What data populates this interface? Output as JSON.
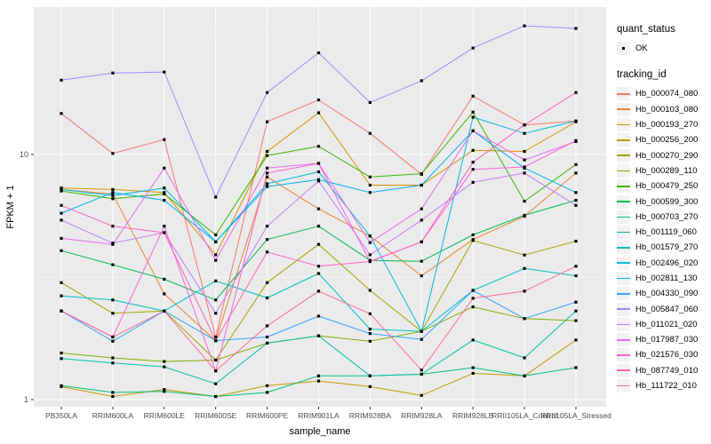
{
  "figure": {
    "legend": {
      "quant_status_title": "quant_status",
      "ok_label": "OK",
      "tracking_id_title": "tracking_id"
    }
  },
  "chart_data": {
    "type": "line",
    "title": "",
    "xlabel": "sample_name",
    "ylabel": "FPKM + 1",
    "y_scale": "log10",
    "ylim": [
      0.93,
      39
    ],
    "grid": "on",
    "legend_position": "right",
    "panel_bg": "#EBEBEB",
    "grid_color": "#FFFFFF",
    "point_color": "#000000",
    "tick_label_color": "#4D4D4D",
    "y_major_ticks": [
      {
        "value": 1,
        "label": "1"
      },
      {
        "value": 10,
        "label": "10"
      }
    ],
    "y_minor_gridlines": [
      3.162,
      31.62
    ],
    "quant_status": "OK",
    "categories": [
      "PB350LA",
      "RRIM600LA",
      "RRIM600LE",
      "RRIM600SE",
      "RRIM600PE",
      "RRIM901LA",
      "RRIM928BA",
      "RRIM928LA",
      "RRIM928LB",
      "RRII105LA_Control",
      "RRII105LA_Stressed"
    ],
    "series": [
      {
        "name": "Hb_000074_080",
        "color": "#F8766D",
        "values": [
          14.7,
          10.1,
          11.5,
          1.8,
          13.6,
          16.7,
          12.2,
          8.3,
          17.3,
          13.2,
          13.7
        ]
      },
      {
        "name": "Hb_000103_080",
        "color": "#EA8331",
        "values": [
          7.2,
          6.9,
          2.7,
          1.74,
          8.1,
          6.0,
          4.65,
          3.2,
          4.5,
          5.6,
          8.4
        ]
      },
      {
        "name": "Hb_000193_270",
        "color": "#D89000",
        "values": [
          7.3,
          7.2,
          7.0,
          3.9,
          10.3,
          14.8,
          7.5,
          7.5,
          10.4,
          10.3,
          13.6
        ]
      },
      {
        "name": "Hb_000256_200",
        "color": "#C09B00",
        "values": [
          1.13,
          1.03,
          1.1,
          1.03,
          1.14,
          1.19,
          1.13,
          1.04,
          1.28,
          1.25,
          1.75
        ]
      },
      {
        "name": "Hb_000270_290",
        "color": "#A3A500",
        "values": [
          3.0,
          2.25,
          2.3,
          1.45,
          3.0,
          4.3,
          2.79,
          1.9,
          4.46,
          3.89,
          4.43
        ]
      },
      {
        "name": "Hb_000289_110",
        "color": "#7CAE00",
        "values": [
          1.55,
          1.48,
          1.43,
          1.45,
          1.7,
          1.82,
          1.73,
          1.9,
          2.39,
          2.14,
          2.1
        ]
      },
      {
        "name": "Hb_000479_250",
        "color": "#39B600",
        "values": [
          7.1,
          6.6,
          6.9,
          4.7,
          9.9,
          10.8,
          8.1,
          8.35,
          14.9,
          6.45,
          9.1
        ]
      },
      {
        "name": "Hb_000599_300",
        "color": "#00BB4E",
        "values": [
          4.05,
          3.55,
          3.1,
          2.55,
          4.5,
          5.1,
          3.7,
          3.67,
          4.7,
          5.65,
          6.5
        ]
      },
      {
        "name": "Hb_000703_270",
        "color": "#00BF7D",
        "values": [
          1.14,
          1.07,
          1.08,
          1.03,
          1.07,
          1.25,
          1.25,
          1.27,
          1.35,
          1.25,
          1.35
        ]
      },
      {
        "name": "Hb_001119_060",
        "color": "#00C1A3",
        "values": [
          1.47,
          1.41,
          1.36,
          1.16,
          1.7,
          1.82,
          1.25,
          1.27,
          1.75,
          1.48,
          2.3
        ]
      },
      {
        "name": "Hb_001579_270",
        "color": "#00BFC4",
        "values": [
          2.65,
          2.55,
          2.3,
          3.05,
          2.6,
          3.27,
          1.94,
          1.9,
          2.79,
          3.43,
          3.2
        ]
      },
      {
        "name": "Hb_002496_020",
        "color": "#00BAE0",
        "values": [
          7.2,
          6.8,
          7.3,
          4.4,
          7.6,
          8.5,
          4.65,
          1.9,
          14.2,
          12.2,
          13.7
        ]
      },
      {
        "name": "Hb_002811_130",
        "color": "#00B0F6",
        "values": [
          5.76,
          7.0,
          6.5,
          4.4,
          7.4,
          7.9,
          7.0,
          7.5,
          12.5,
          8.8,
          7.0
        ]
      },
      {
        "name": "Hb_004330_090",
        "color": "#35A2FF",
        "values": [
          2.3,
          1.73,
          2.3,
          1.74,
          1.8,
          2.19,
          1.86,
          1.76,
          2.79,
          2.14,
          2.5
        ]
      },
      {
        "name": "Hb_005847_060",
        "color": "#9590FF",
        "values": [
          20.1,
          21.5,
          21.7,
          6.7,
          17.9,
          26.0,
          16.3,
          20.0,
          27.2,
          33.5,
          32.7
        ]
      },
      {
        "name": "Hb_011021_020",
        "color": "#C77CFF",
        "values": [
          5.4,
          4.35,
          4.8,
          2.25,
          5.1,
          7.8,
          3.9,
          5.4,
          7.7,
          8.4,
          6.2
        ]
      },
      {
        "name": "Hb_017987_030",
        "color": "#E76BF3",
        "values": [
          4.55,
          4.3,
          8.8,
          3.7,
          8.8,
          9.2,
          4.37,
          6.0,
          12.5,
          9.5,
          11.3
        ]
      },
      {
        "name": "Hb_021576_030",
        "color": "#FA62DB",
        "values": [
          2.3,
          1.8,
          5.1,
          1.31,
          8.4,
          9.2,
          3.66,
          4.4,
          8.7,
          8.9,
          11.4
        ]
      },
      {
        "name": "Hb_087749_010",
        "color": "#FF62BC",
        "values": [
          6.2,
          5.1,
          4.8,
          1.74,
          4.0,
          3.5,
          3.66,
          4.4,
          9.3,
          13.2,
          17.9
        ]
      },
      {
        "name": "Hb_111722_010",
        "color": "#FF6A98",
        "values": [
          2.3,
          1.8,
          2.3,
          1.31,
          2.0,
          2.77,
          2.24,
          1.32,
          2.59,
          2.77,
          3.5
        ]
      }
    ]
  }
}
